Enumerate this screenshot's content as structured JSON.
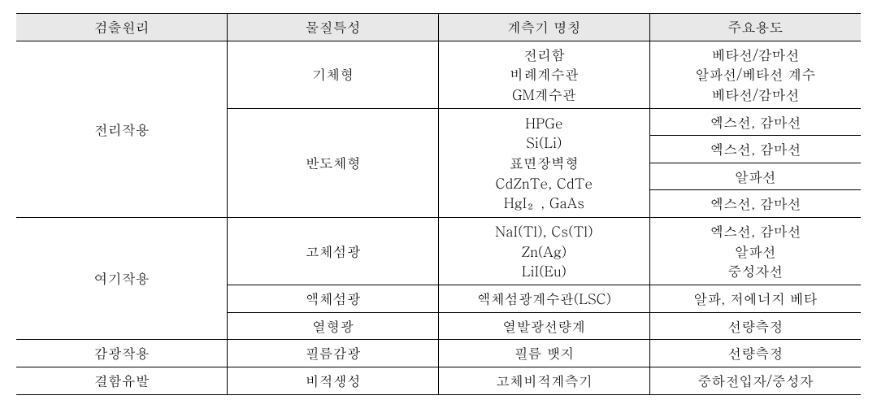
{
  "table": {
    "header_bg": "#e8e8e8",
    "border_color": "#000000",
    "font_size": 17,
    "columns": [
      "검출원리",
      "물질특성",
      "계측기 명칭",
      "주요용도"
    ],
    "body": {
      "r1": {
        "principle": "전리작용",
        "material": "기체형",
        "instrument": "전리함\n비례계수관\nGM계수관",
        "use": "베타선/감마선\n알파선/베타선 계수\n베타선/감마선"
      },
      "r2": {
        "material": "반도체형",
        "instrument": "HPGe\nSi(Li)\n표면장벽형\nCdZnTe, CdTe\nHgI₂, GaAs",
        "use_a": "엑스선, 감마선",
        "use_b": "엑스선, 감마선",
        "use_c": "알파선",
        "use_d": "엑스선, 감마선"
      },
      "r3": {
        "principle": "여기작용",
        "material": "고체섬광",
        "instrument": "NaI(Tl), Cs(Tl)\nZn(Ag)\nLiI(Eu)",
        "use": "엑스선, 감마선\n알파선\n중성자선"
      },
      "r4": {
        "material": "액체섬광",
        "instrument": "액체섬광계수관(LSC)",
        "use": "알파, 저에너지 베타"
      },
      "r5": {
        "material": "열형광",
        "instrument": "열발광선량계",
        "use": "선량측정"
      },
      "r6": {
        "principle": "감광작용",
        "material": "필름감광",
        "instrument": "필름 뱃지",
        "use": "선량측정"
      },
      "r7": {
        "principle": "결함유발",
        "material": "비적생성",
        "instrument": "고체비적계측기",
        "use": "중하전입자/중성자"
      }
    }
  }
}
